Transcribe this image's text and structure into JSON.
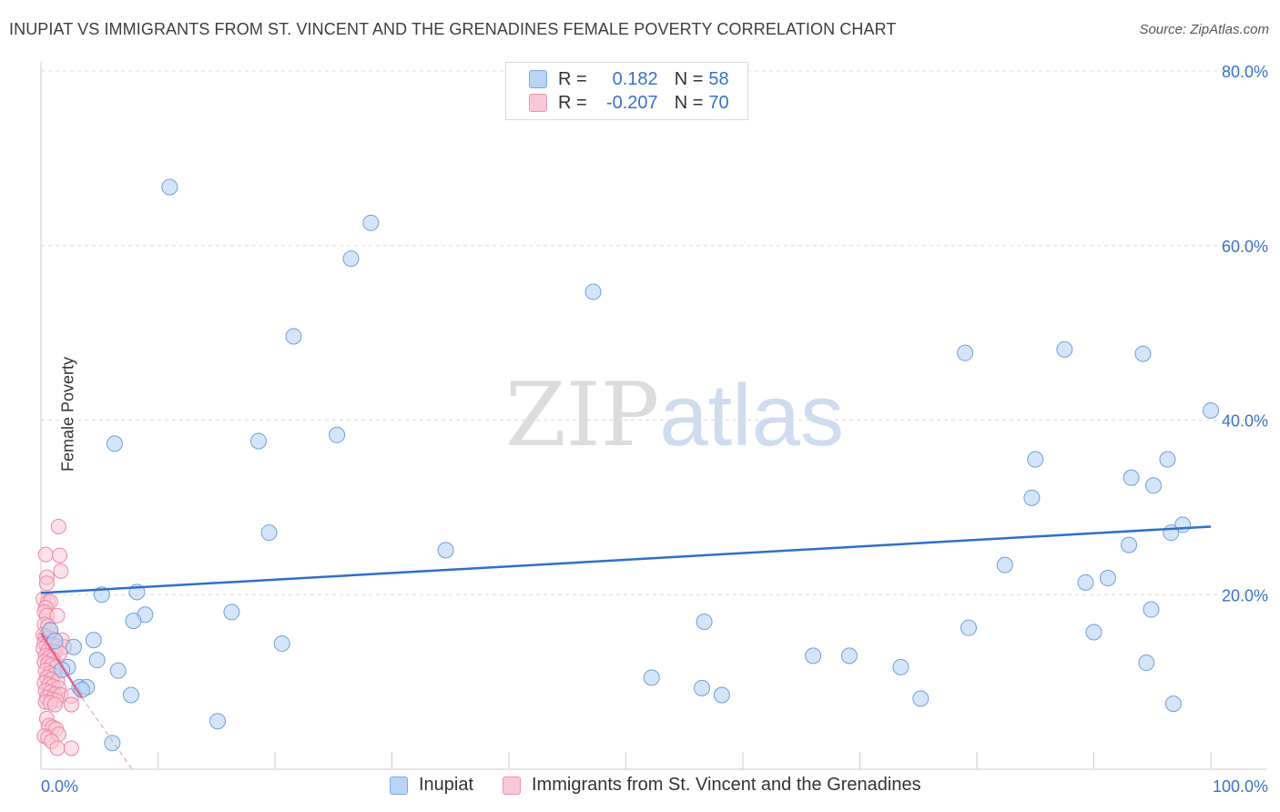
{
  "title": "INUPIAT VS IMMIGRANTS FROM ST. VINCENT AND THE GRENADINES FEMALE POVERTY CORRELATION CHART",
  "source": "Source: ZipAtlas.com",
  "watermark": {
    "zip": "ZIP",
    "atlas": "atlas"
  },
  "legend": {
    "r_label": "R =",
    "n_label": "N =",
    "series1": {
      "r": "0.182",
      "n": "58"
    },
    "series2": {
      "r": "-0.207",
      "n": "70"
    }
  },
  "bottom_legend": {
    "series1": "Inupiat",
    "series2": "Immigrants from St. Vincent and the Grenadines"
  },
  "colors": {
    "blue_fill": "#b9d4f4",
    "blue_stroke": "#6e9fdc",
    "blue_line": "#2f6fcb",
    "pink_fill": "#f9c8d6",
    "pink_stroke": "#ec86a6",
    "pink_line": "#e2628f",
    "tick_label": "#3a72c9"
  },
  "chart_data": {
    "type": "scatter",
    "title": "INUPIAT VS IMMIGRANTS FROM ST. VINCENT AND THE GRENADINES FEMALE POVERTY CORRELATION CHART",
    "xlabel": "",
    "ylabel": "Female Poverty",
    "xlim": [
      0,
      100
    ],
    "ylim": [
      0,
      80
    ],
    "x_tick_labels": [
      {
        "value": 0,
        "label": "0.0%"
      },
      {
        "value": 100,
        "label": "100.0%"
      }
    ],
    "y_tick_labels": [
      {
        "value": 20,
        "label": "20.0%"
      },
      {
        "value": 40,
        "label": "40.0%"
      },
      {
        "value": 60,
        "label": "60.0%"
      },
      {
        "value": 80,
        "label": "80.0%"
      }
    ],
    "series": [
      {
        "name": "Inupiat",
        "r": 0.182,
        "n": 58,
        "trend": {
          "x0": 0,
          "y0": 20.2,
          "x1": 100,
          "y1": 27.8
        },
        "points": [
          [
            11.0,
            66.7
          ],
          [
            28.2,
            62.6
          ],
          [
            26.5,
            58.5
          ],
          [
            47.2,
            54.7
          ],
          [
            21.6,
            49.6
          ],
          [
            79.0,
            47.7
          ],
          [
            87.5,
            48.1
          ],
          [
            94.2,
            47.6
          ],
          [
            100.0,
            41.1
          ],
          [
            6.3,
            37.3
          ],
          [
            18.6,
            37.6
          ],
          [
            25.3,
            38.3
          ],
          [
            85.0,
            35.5
          ],
          [
            96.3,
            35.5
          ],
          [
            93.2,
            33.4
          ],
          [
            95.1,
            32.5
          ],
          [
            84.7,
            31.1
          ],
          [
            97.6,
            28.0
          ],
          [
            96.6,
            27.1
          ],
          [
            19.5,
            27.1
          ],
          [
            34.6,
            25.1
          ],
          [
            93.0,
            25.7
          ],
          [
            82.4,
            23.4
          ],
          [
            91.2,
            21.9
          ],
          [
            89.3,
            21.4
          ],
          [
            5.2,
            20.0
          ],
          [
            8.2,
            20.3
          ],
          [
            94.9,
            18.3
          ],
          [
            16.3,
            18.0
          ],
          [
            8.9,
            17.7
          ],
          [
            7.9,
            17.0
          ],
          [
            56.7,
            16.9
          ],
          [
            79.3,
            16.2
          ],
          [
            90.0,
            15.7
          ],
          [
            0.8,
            15.9
          ],
          [
            4.5,
            14.8
          ],
          [
            1.2,
            14.7
          ],
          [
            20.6,
            14.4
          ],
          [
            2.8,
            14.0
          ],
          [
            69.1,
            13.0
          ],
          [
            66.0,
            13.0
          ],
          [
            4.8,
            12.5
          ],
          [
            73.5,
            11.7
          ],
          [
            94.5,
            12.2
          ],
          [
            2.3,
            11.7
          ],
          [
            1.8,
            11.4
          ],
          [
            6.6,
            11.3
          ],
          [
            52.2,
            10.5
          ],
          [
            3.3,
            9.4
          ],
          [
            3.9,
            9.4
          ],
          [
            56.5,
            9.3
          ],
          [
            7.7,
            8.5
          ],
          [
            58.2,
            8.5
          ],
          [
            75.2,
            8.1
          ],
          [
            96.8,
            7.5
          ],
          [
            15.1,
            5.5
          ],
          [
            6.1,
            3.0
          ],
          [
            3.5,
            9.1
          ]
        ]
      },
      {
        "name": "Immigrants from St. Vincent and the Grenadines",
        "r": -0.207,
        "n": 70,
        "trend": {
          "x0": 0,
          "y0": 15.6,
          "x1": 3.5,
          "y1": 8.2
        },
        "trend_dashed_extension": {
          "x0": 3.5,
          "y0": 8.2,
          "x1": 7.8,
          "y1": 0.0
        },
        "points": [
          [
            1.5,
            27.8
          ],
          [
            0.4,
            24.6
          ],
          [
            1.6,
            24.5
          ],
          [
            1.7,
            22.7
          ],
          [
            0.5,
            22.0
          ],
          [
            0.5,
            21.3
          ],
          [
            0.2,
            19.5
          ],
          [
            0.6,
            19.2
          ],
          [
            0.8,
            19.2
          ],
          [
            0.4,
            18.5
          ],
          [
            0.3,
            18.0
          ],
          [
            0.5,
            17.6
          ],
          [
            1.4,
            17.6
          ],
          [
            0.3,
            16.6
          ],
          [
            0.6,
            16.4
          ],
          [
            0.8,
            16.0
          ],
          [
            0.2,
            15.4
          ],
          [
            0.4,
            15.2
          ],
          [
            0.7,
            15.0
          ],
          [
            1.1,
            14.9
          ],
          [
            1.8,
            14.8
          ],
          [
            0.3,
            14.4
          ],
          [
            0.5,
            14.2
          ],
          [
            0.9,
            14.3
          ],
          [
            1.3,
            14.1
          ],
          [
            2.0,
            14.0
          ],
          [
            0.2,
            13.8
          ],
          [
            0.6,
            13.6
          ],
          [
            0.9,
            13.5
          ],
          [
            1.2,
            13.4
          ],
          [
            1.6,
            13.3
          ],
          [
            0.4,
            13.0
          ],
          [
            0.7,
            12.8
          ],
          [
            1.0,
            12.6
          ],
          [
            0.3,
            12.3
          ],
          [
            0.6,
            12.1
          ],
          [
            0.9,
            11.9
          ],
          [
            1.3,
            11.7
          ],
          [
            0.4,
            11.3
          ],
          [
            0.8,
            11.0
          ],
          [
            1.1,
            10.8
          ],
          [
            0.5,
            10.5
          ],
          [
            0.9,
            10.3
          ],
          [
            1.4,
            10.1
          ],
          [
            0.3,
            9.9
          ],
          [
            0.7,
            9.7
          ],
          [
            1.0,
            9.5
          ],
          [
            1.5,
            9.3
          ],
          [
            0.4,
            9.0
          ],
          [
            0.8,
            8.8
          ],
          [
            1.2,
            8.6
          ],
          [
            1.7,
            8.5
          ],
          [
            2.6,
            8.4
          ],
          [
            0.5,
            8.2
          ],
          [
            0.9,
            8.0
          ],
          [
            1.3,
            7.9
          ],
          [
            0.4,
            7.7
          ],
          [
            0.8,
            7.6
          ],
          [
            2.6,
            7.4
          ],
          [
            1.2,
            7.4
          ],
          [
            0.5,
            5.8
          ],
          [
            0.7,
            5.0
          ],
          [
            1.0,
            4.8
          ],
          [
            1.3,
            4.6
          ],
          [
            0.3,
            3.8
          ],
          [
            0.6,
            3.6
          ],
          [
            1.5,
            4.0
          ],
          [
            0.9,
            3.2
          ],
          [
            1.4,
            2.4
          ],
          [
            2.6,
            2.4
          ]
        ]
      }
    ]
  }
}
